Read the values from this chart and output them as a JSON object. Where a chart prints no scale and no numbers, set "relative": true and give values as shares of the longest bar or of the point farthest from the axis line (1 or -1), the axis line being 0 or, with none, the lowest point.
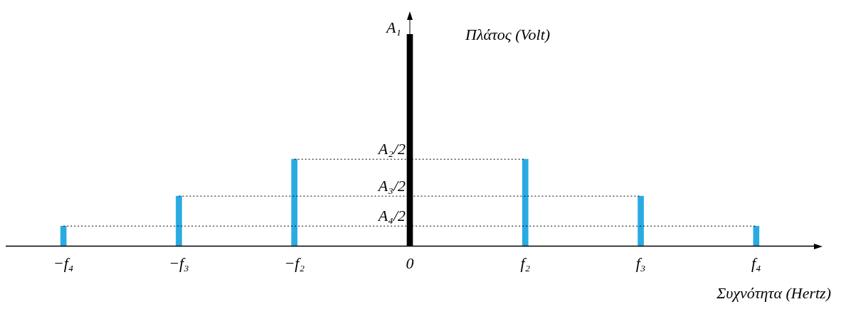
{
  "chart_data": {
    "type": "bar",
    "relative": true,
    "categories": [
      "−f₄",
      "−f₃",
      "−f₂",
      "0",
      "f₂",
      "f₃",
      "f₄"
    ],
    "values": [
      0.095,
      0.236,
      0.41,
      1,
      0.41,
      0.236,
      0.095
    ],
    "colors": [
      "#29abe2",
      "#29abe2",
      "#29abe2",
      "#000000",
      "#29abe2",
      "#29abe2",
      "#29abe2"
    ],
    "xlabel": "Συχνότητα (Hertz)",
    "ylabel": "Πλάτος (Volt)",
    "annotations": [
      {
        "text": "A₁",
        "x": "0",
        "y": 1
      }
    ],
    "ref_lines": [
      {
        "axis": "y",
        "value": 0.41,
        "label": "A₂/2",
        "line_style": "dotted"
      },
      {
        "axis": "y",
        "value": 0.236,
        "label": "A₃/2",
        "line_style": "dotted"
      },
      {
        "axis": "y",
        "value": 0.095,
        "label": "A₄/2",
        "line_style": "dotted"
      }
    ],
    "legend": false
  }
}
